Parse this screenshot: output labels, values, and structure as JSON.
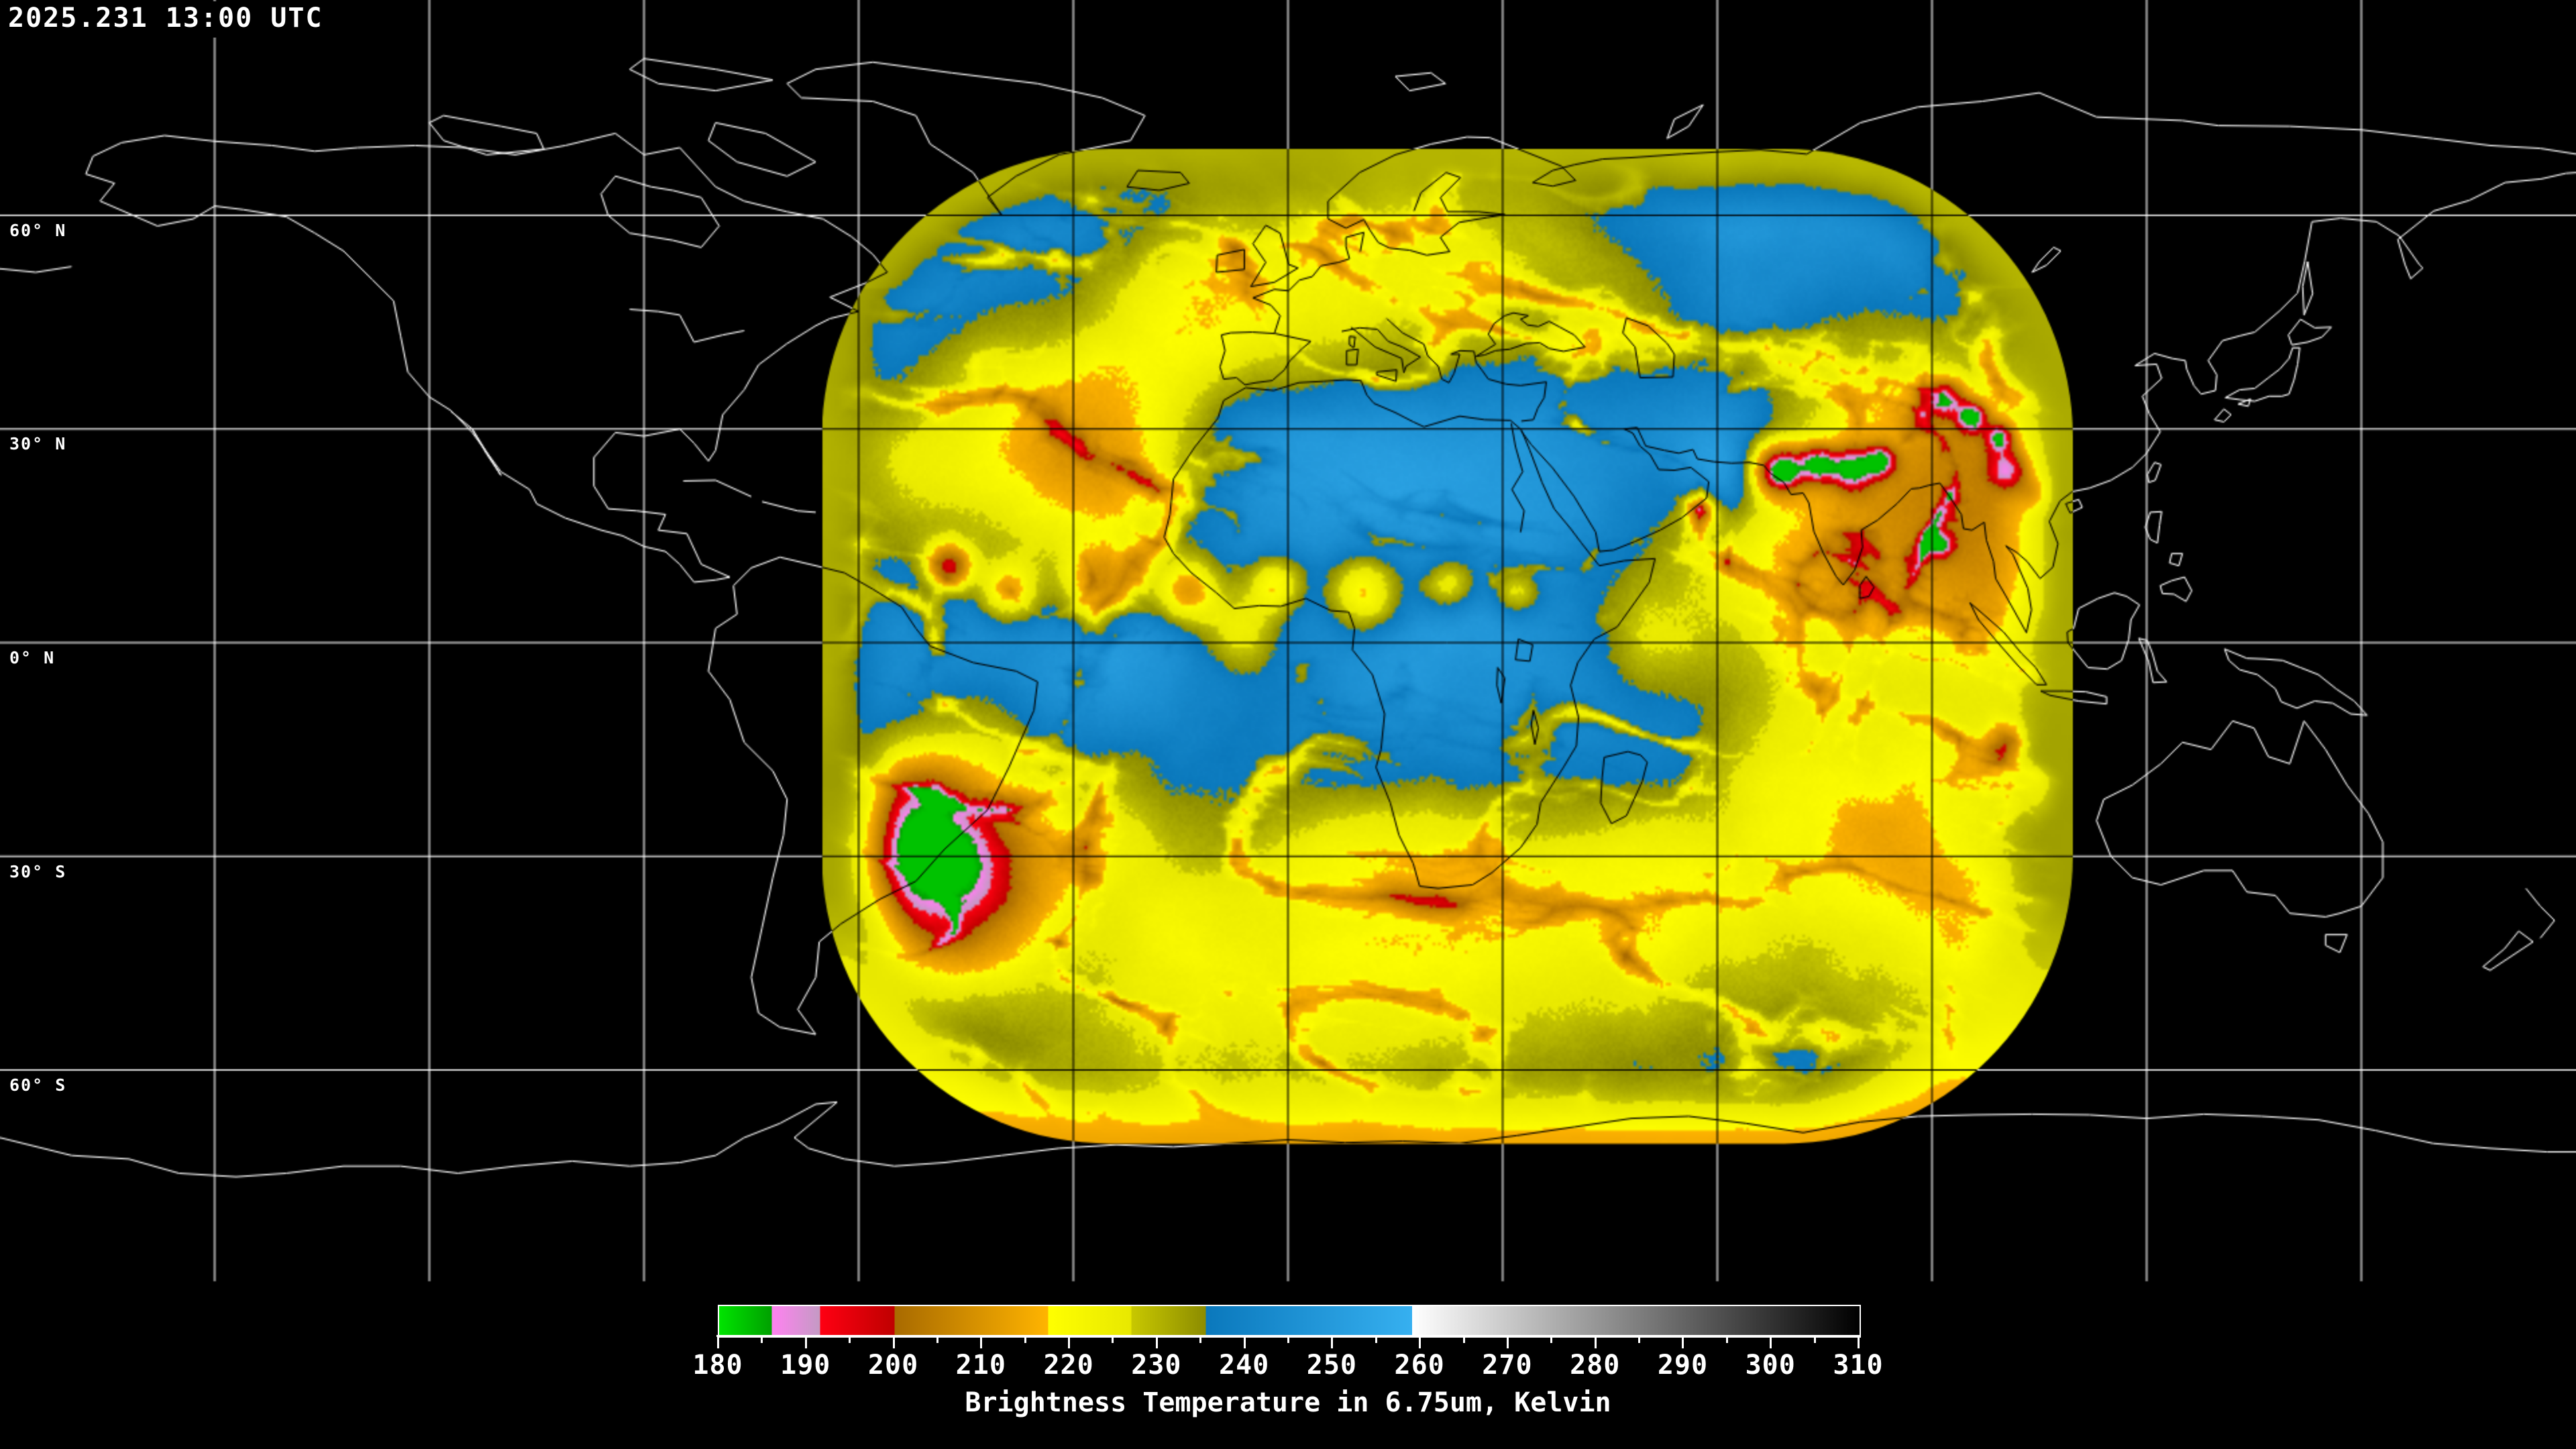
{
  "header": {
    "timestamp": "2025.231 13:00 UTC"
  },
  "map": {
    "projection": "equirectangular",
    "grid_spacing_deg": 30,
    "latitude_labels": [
      {
        "text": "60° N",
        "lat": 60
      },
      {
        "text": "30° N",
        "lat": 30
      },
      {
        "text": "0° N",
        "lat": 0
      },
      {
        "text": "30° S",
        "lat": -30
      },
      {
        "text": "60° S",
        "lat": -60
      }
    ],
    "colors": {
      "background": "#000000",
      "coastline_outside_data": "#ffffff",
      "coastline_inside_data": "#000000",
      "grid_outside_data": "#ffffff",
      "grid_inside_data": "#000000"
    },
    "data_region": {
      "description": "water vapor satellite composite coverage",
      "shape": "rounded-rectangle",
      "lon_min": -65,
      "lon_max": 110,
      "lat_min": -70,
      "lat_max": 69
    }
  },
  "colorbar": {
    "caption": "Brightness Temperature in 6.75um, Kelvin",
    "unit": "Kelvin",
    "min": 180,
    "max": 310,
    "major_ticks": [
      180,
      190,
      200,
      210,
      220,
      230,
      240,
      250,
      260,
      270,
      280,
      290,
      300,
      310
    ],
    "minor_tick_step": 5,
    "segments": [
      {
        "from": 180,
        "to": 186,
        "start": "#00e400",
        "end": "#00a000"
      },
      {
        "from": 186,
        "to": 191.5,
        "start": "#ff82f0",
        "end": "#c49ac4"
      },
      {
        "from": 191.5,
        "to": 200,
        "start": "#ff0012",
        "end": "#bf0000"
      },
      {
        "from": 200,
        "to": 217.5,
        "start": "#a86a00",
        "end": "#ffb400"
      },
      {
        "from": 217.5,
        "to": 227,
        "start": "#ffff00",
        "end": "#e8e800"
      },
      {
        "from": 227,
        "to": 235.5,
        "start": "#c8c800",
        "end": "#8c8c00"
      },
      {
        "from": 235.5,
        "to": 259,
        "start": "#0a78bc",
        "end": "#36b0f0"
      },
      {
        "from": 259,
        "to": 310,
        "start": "#ffffff",
        "end": "#000000"
      }
    ]
  }
}
